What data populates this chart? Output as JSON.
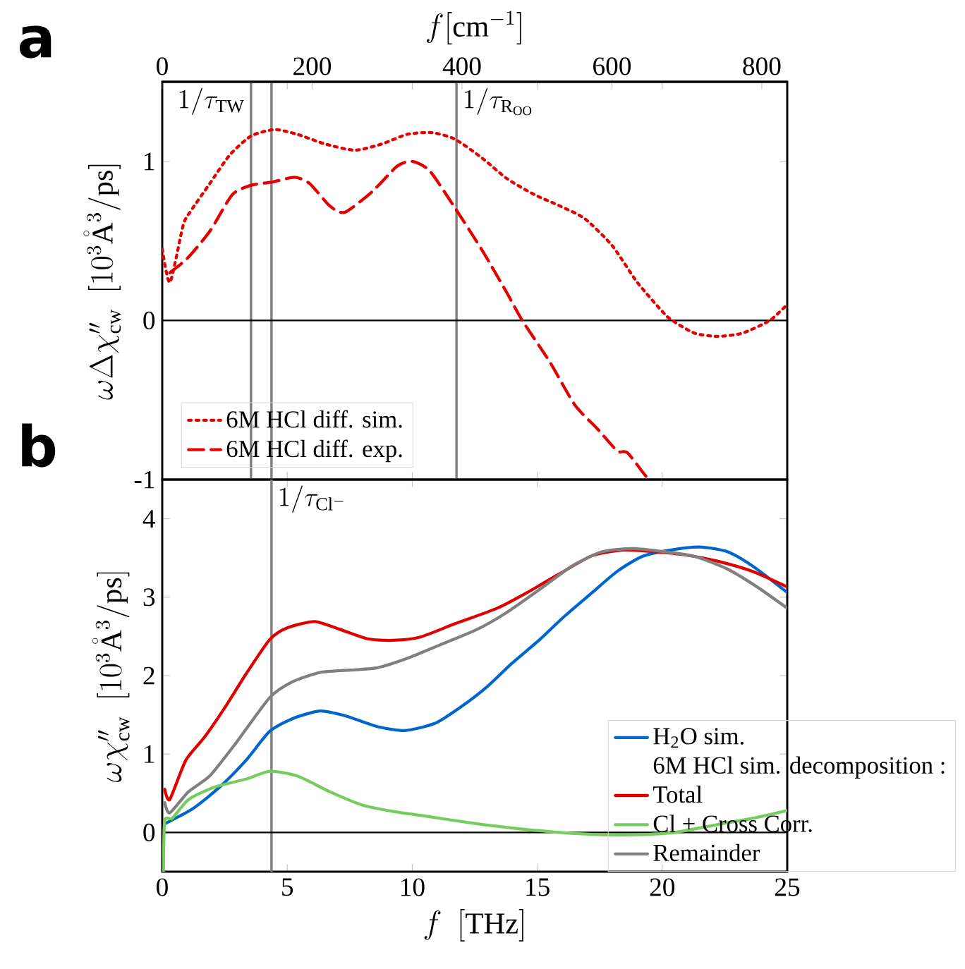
{
  "chart_data": [
    {
      "type": "line",
      "xlim": [
        0,
        25
      ],
      "ylim": [
        -1,
        1.5
      ],
      "xticks": [
        0,
        5,
        10,
        15,
        20,
        25
      ],
      "yticks": [
        -1,
        0,
        1
      ],
      "tick_labels": "y",
      "x2lim": [
        0,
        833.9
      ],
      "x2ticks": [
        0,
        200,
        400,
        600,
        800
      ],
      "x2label": "f[\\mathrm{cm}^{-1}]",
      "ylabel": "\\omega\\Delta\\chi''_{\\mathrm{cw}}\\ \\ [10^3\\mathring{\\mathrm{A}}^3/\\mathrm{ps}]",
      "legend": "bottom left",
      "annotations": [
        "a"
      ],
      "ref_lines": [
        {
          "axis": "x",
          "value": 3.55,
          "label": "1/\\tau_{\\mathrm{TW}}",
          "color": "#808080"
        },
        {
          "axis": "x",
          "value": 4.37,
          "label": null,
          "color": "#808080"
        },
        {
          "axis": "x",
          "value": 11.77,
          "label": "1/\\tau_{\\mathrm{R_{OO}}}",
          "color": "#808080"
        },
        {
          "axis": "y",
          "value": 0,
          "label": null,
          "color": "#000000"
        }
      ],
      "series": [
        {
          "name": "6M HCl diff. sim.",
          "color": "#e50000",
          "line_style": "dotted",
          "x": [
            0,
            0.31,
            0.84,
            1.15,
            1.9,
            2.7,
            3.56,
            4.5,
            5.4,
            6.5,
            7.7,
            8.8,
            9.8,
            10.8,
            11.7,
            12.8,
            13.8,
            14.9,
            15.9,
            16.9,
            18,
            19,
            20.1,
            20.5,
            21.3,
            22.2,
            23.2,
            24.3,
            25
          ],
          "values": [
            0.45,
            0.24,
            0.6,
            0.69,
            0.86,
            1.04,
            1.16,
            1.2,
            1.17,
            1.11,
            1.07,
            1.11,
            1.17,
            1.18,
            1.14,
            1.02,
            0.89,
            0.79,
            0.72,
            0.64,
            0.47,
            0.24,
            0.04,
            -0.01,
            -0.08,
            -0.1,
            -0.08,
            0.0,
            0.1
          ]
        },
        {
          "name": "6M HCl diff. exp.",
          "color": "#e50000",
          "line_style": "dashed",
          "x": [
            0.3,
            1.0,
            1.9,
            2.8,
            3.56,
            4.4,
            5.3,
            5.9,
            6.7,
            7.3,
            8.4,
            9.4,
            10.0,
            10.7,
            11.7,
            12.8,
            13.8,
            14.4,
            15.5,
            16.5,
            17.4,
            18.2,
            18.6,
            19.3,
            19.5
          ],
          "values": [
            0.3,
            0.39,
            0.56,
            0.79,
            0.85,
            0.87,
            0.9,
            0.86,
            0.72,
            0.68,
            0.81,
            0.97,
            1.0,
            0.94,
            0.71,
            0.44,
            0.17,
            0.0,
            -0.26,
            -0.53,
            -0.68,
            -0.82,
            -0.83,
            -0.97,
            -1.0
          ]
        }
      ]
    },
    {
      "type": "line",
      "xlim": [
        0,
        25
      ],
      "ylim": [
        -0.5,
        4.5
      ],
      "xticks": [
        0,
        5,
        10,
        15,
        20,
        25
      ],
      "yticks": [
        0,
        1,
        2,
        3,
        4
      ],
      "xlabel": "f\\ \\ [\\mathrm{THz}]",
      "ylabel": "\\omega\\chi''_{\\mathrm{cw}}\\ \\ [10^3\\mathring{\\mathrm{A}}^3/\\mathrm{ps}]",
      "legend": "bottom right",
      "legend_title": "6M HCl sim. decomposition :",
      "annotations": [
        "b"
      ],
      "ref_lines": [
        {
          "axis": "x",
          "value": 4.37,
          "label": "1/\\tau_{\\mathrm{Cl^{-}}}",
          "color": "#808080"
        },
        {
          "axis": "y",
          "value": 0,
          "label": null,
          "color": "#000000"
        }
      ],
      "series": [
        {
          "name": "H$_{2}$O sim.",
          "color": "#0066cc",
          "x": [
            0.1,
            1.25,
            2.3,
            3.35,
            4.3,
            5.2,
            6.3,
            7.3,
            8.6,
            9.7,
            10.9,
            11.9,
            13.0,
            14.0,
            15.1,
            16.1,
            17.2,
            18.2,
            19.2,
            20.3,
            21.5,
            22.6,
            23.6,
            25
          ],
          "values": [
            0.11,
            0.31,
            0.58,
            0.92,
            1.29,
            1.45,
            1.55,
            1.49,
            1.35,
            1.3,
            1.39,
            1.59,
            1.86,
            2.16,
            2.46,
            2.76,
            3.06,
            3.33,
            3.52,
            3.6,
            3.64,
            3.58,
            3.4,
            3.06
          ]
        },
        {
          "name": "Total",
          "color": "#e00000",
          "x": [
            0.1,
            0.3,
            0.94,
            1.7,
            2.5,
            3.35,
            4.3,
            5.0,
            6.1,
            7.1,
            8.2,
            9.2,
            10.3,
            11.7,
            13.4,
            14.6,
            15.9,
            17.2,
            18.4,
            19.7,
            20.9,
            22.2,
            23.6,
            25
          ],
          "values": [
            0.55,
            0.42,
            0.92,
            1.22,
            1.59,
            2.02,
            2.46,
            2.61,
            2.69,
            2.59,
            2.47,
            2.45,
            2.49,
            2.66,
            2.86,
            3.06,
            3.3,
            3.53,
            3.6,
            3.58,
            3.54,
            3.46,
            3.33,
            3.13
          ]
        },
        {
          "name": "Cl + Cross Corr.",
          "color": "#77cc5f",
          "x": [
            0.05,
            0.1,
            0.4,
            1.05,
            2.1,
            3.35,
            4.3,
            5.4,
            6.7,
            8.0,
            9.2,
            10.7,
            12.6,
            14.2,
            15.9,
            17.6,
            19.0,
            20.5,
            22.2,
            23.6,
            25
          ],
          "values": [
            -0.49,
            0.15,
            0.18,
            0.42,
            0.58,
            0.68,
            0.78,
            0.72,
            0.52,
            0.35,
            0.27,
            0.2,
            0.11,
            0.05,
            0.0,
            -0.03,
            -0.03,
            0.0,
            0.1,
            0.18,
            0.28
          ]
        },
        {
          "name": "Remainder",
          "color": "#808080",
          "x": [
            0.1,
            0.3,
            1.05,
            1.9,
            2.9,
            4.3,
            5.2,
            6.3,
            7.5,
            8.6,
            9.8,
            11.1,
            12.6,
            13.8,
            15.1,
            16.4,
            17.6,
            18.8,
            20.1,
            21.3,
            22.6,
            23.8,
            25
          ],
          "values": [
            0.38,
            0.25,
            0.52,
            0.72,
            1.12,
            1.72,
            1.92,
            2.04,
            2.07,
            2.1,
            2.22,
            2.39,
            2.59,
            2.81,
            3.1,
            3.4,
            3.58,
            3.62,
            3.58,
            3.52,
            3.36,
            3.13,
            2.86
          ]
        }
      ]
    }
  ]
}
